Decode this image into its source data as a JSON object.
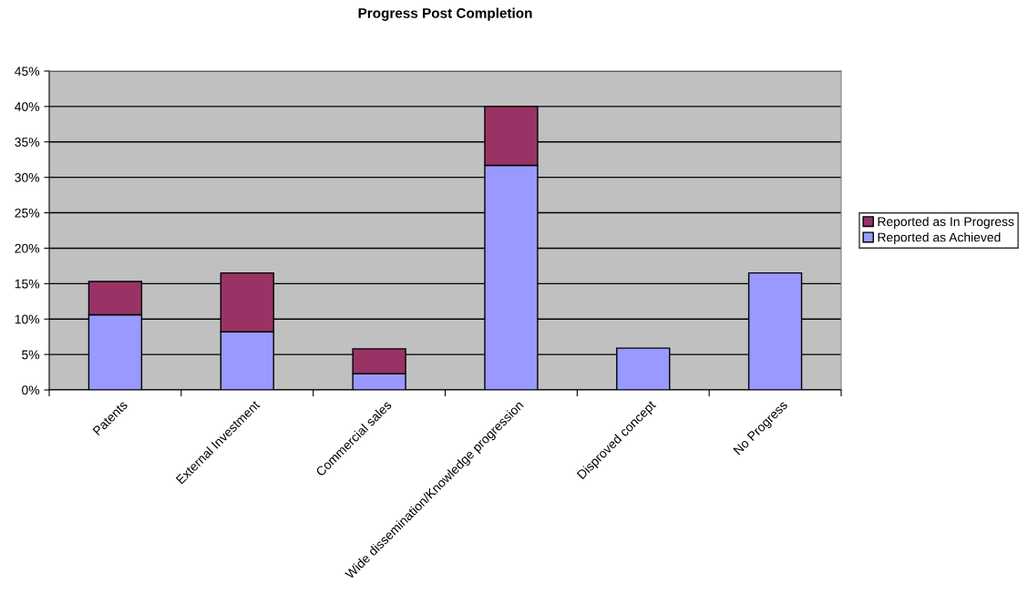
{
  "chart_data": {
    "type": "bar",
    "title": "Progress Post Completion",
    "stacked": true,
    "categories": [
      "Patents",
      "External Investment",
      "Commercial sales",
      "Wide dissemination/Knowledge progression",
      "Disproved concept",
      "No Progress"
    ],
    "series": [
      {
        "name": "Reported as Achieved",
        "color": "#9999ff",
        "values": [
          10.6,
          8.2,
          2.3,
          31.7,
          5.9,
          16.5
        ]
      },
      {
        "name": "Reported as In Progress",
        "color": "#993366",
        "values": [
          4.7,
          8.3,
          3.5,
          8.3,
          null,
          null
        ]
      }
    ],
    "ylim": [
      0,
      45
    ],
    "yticks": [
      {
        "value": 0,
        "label": "0%"
      },
      {
        "value": 5,
        "label": "5%"
      },
      {
        "value": 10,
        "label": "10%"
      },
      {
        "value": 15,
        "label": "15%"
      },
      {
        "value": 20,
        "label": "20%"
      },
      {
        "value": 25,
        "label": "25%"
      },
      {
        "value": 30,
        "label": "30%"
      },
      {
        "value": 35,
        "label": "35%"
      },
      {
        "value": 40,
        "label": "40%"
      },
      {
        "value": 45,
        "label": "45%"
      }
    ],
    "grid": "y",
    "legend": "right"
  }
}
